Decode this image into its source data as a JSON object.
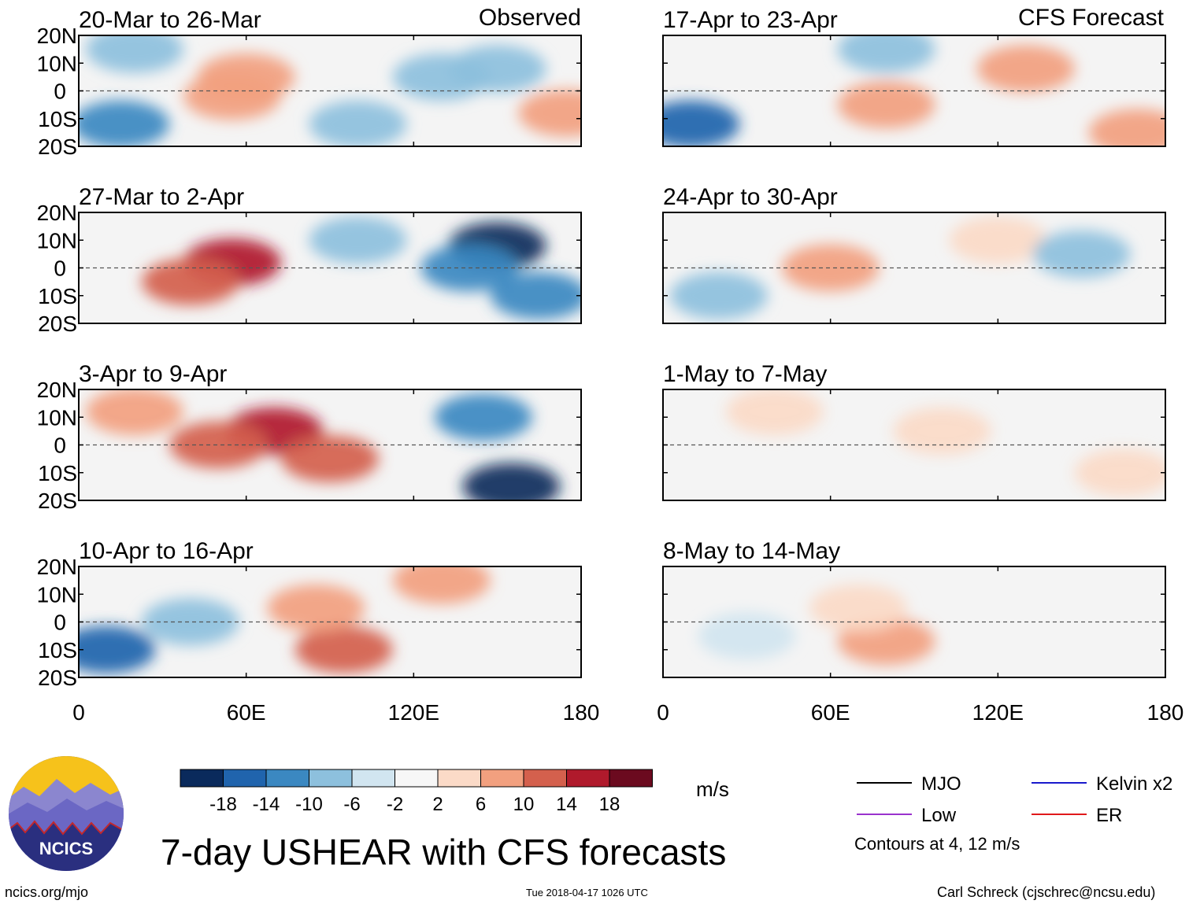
{
  "page": {
    "title": "7-day USHEAR with CFS forecasts",
    "left_footer": "ncics.org/mjo",
    "timestamp": "Tue 2018-04-17 1026 UTC",
    "author": "Carl Schreck (cjschrec@ncsu.edu)",
    "logo_text": "NCICS",
    "units": "m/s",
    "contours_note": "Contours at 4, 12 m/s"
  },
  "columns": {
    "left_label": "Observed",
    "right_label": "CFS Forecast"
  },
  "contour_legend": [
    {
      "name": "MJO",
      "color": "#000000"
    },
    {
      "name": "Kelvin x2",
      "color": "#1a1acc"
    },
    {
      "name": "Low",
      "color": "#9a32cd"
    },
    {
      "name": "ER",
      "color": "#e0191b"
    }
  ],
  "colorbar": {
    "colors": [
      "#0a2a5c",
      "#2064ad",
      "#3b88c1",
      "#8dc0dd",
      "#d1e5f0",
      "#f7f7f7",
      "#fbdac7",
      "#f2a07f",
      "#d4604d",
      "#b01a2c",
      "#6b0a1f"
    ],
    "ticks": [
      "-18",
      "-14",
      "-10",
      "-6",
      "-2",
      "2",
      "6",
      "10",
      "14",
      "18"
    ]
  },
  "chart_data": {
    "type": "heatmap",
    "variable": "USHEAR anomaly",
    "units": "m/s",
    "x_axis": {
      "range": [
        0,
        180
      ],
      "ticks": [
        "0",
        "60E",
        "120E",
        "180"
      ]
    },
    "y_axis": {
      "range": [
        -20,
        20
      ],
      "ticks": [
        "20N",
        "10N",
        "0",
        "10S",
        "20S"
      ]
    },
    "panels": [
      {
        "label": "20-Mar to 26-Mar",
        "kind": "Observed",
        "anomaly_cells": [
          {
            "lon": 60,
            "lat": 5,
            "value": 10
          },
          {
            "lon": 55,
            "lat": -2,
            "value": 8
          },
          {
            "lon": 20,
            "lat": 15,
            "value": -8
          },
          {
            "lon": 15,
            "lat": -12,
            "value": -10
          },
          {
            "lon": 130,
            "lat": 5,
            "value": -6
          },
          {
            "lon": 150,
            "lat": 8,
            "value": -8
          },
          {
            "lon": 175,
            "lat": -8,
            "value": 10
          },
          {
            "lon": 100,
            "lat": -12,
            "value": -6
          }
        ]
      },
      {
        "label": "27-Mar to 2-Apr",
        "kind": "Observed",
        "anomaly_cells": [
          {
            "lon": 55,
            "lat": 2,
            "value": 18
          },
          {
            "lon": 40,
            "lat": -5,
            "value": 14
          },
          {
            "lon": 150,
            "lat": 8,
            "value": -18
          },
          {
            "lon": 140,
            "lat": 0,
            "value": -12
          },
          {
            "lon": 165,
            "lat": -10,
            "value": -10
          },
          {
            "lon": 100,
            "lat": 10,
            "value": -6
          }
        ]
      },
      {
        "label": "3-Apr to 9-Apr",
        "kind": "Observed",
        "anomaly_cells": [
          {
            "lon": 70,
            "lat": 5,
            "value": 18
          },
          {
            "lon": 50,
            "lat": 0,
            "value": 14
          },
          {
            "lon": 90,
            "lat": -5,
            "value": 14
          },
          {
            "lon": 20,
            "lat": 12,
            "value": 8
          },
          {
            "lon": 155,
            "lat": -15,
            "value": -18
          },
          {
            "lon": 145,
            "lat": 10,
            "value": -10
          }
        ]
      },
      {
        "label": "10-Apr to 16-Apr",
        "kind": "Observed",
        "anomaly_cells": [
          {
            "lon": 95,
            "lat": -10,
            "value": 14
          },
          {
            "lon": 85,
            "lat": 5,
            "value": 10
          },
          {
            "lon": 130,
            "lat": 15,
            "value": 10
          },
          {
            "lon": 10,
            "lat": -10,
            "value": -14
          },
          {
            "lon": 40,
            "lat": 0,
            "value": -6
          }
        ]
      },
      {
        "label": "17-Apr to 23-Apr",
        "kind": "CFS Forecast",
        "anomaly_cells": [
          {
            "lon": 10,
            "lat": -12,
            "value": -14
          },
          {
            "lon": 80,
            "lat": -5,
            "value": 8
          },
          {
            "lon": 130,
            "lat": 8,
            "value": 8
          },
          {
            "lon": 80,
            "lat": 15,
            "value": -8
          },
          {
            "lon": 170,
            "lat": -15,
            "value": 8
          }
        ]
      },
      {
        "label": "24-Apr to 30-Apr",
        "kind": "CFS Forecast",
        "anomaly_cells": [
          {
            "lon": 60,
            "lat": 0,
            "value": 8
          },
          {
            "lon": 120,
            "lat": 10,
            "value": 6
          },
          {
            "lon": 20,
            "lat": -10,
            "value": -6
          },
          {
            "lon": 150,
            "lat": 5,
            "value": -6
          }
        ]
      },
      {
        "label": "1-May to 7-May",
        "kind": "CFS Forecast",
        "anomaly_cells": [
          {
            "lon": 40,
            "lat": 12,
            "value": 6
          },
          {
            "lon": 100,
            "lat": 5,
            "value": 4
          },
          {
            "lon": 165,
            "lat": -10,
            "value": 6
          }
        ]
      },
      {
        "label": "8-May to 14-May",
        "kind": "CFS Forecast",
        "anomaly_cells": [
          {
            "lon": 80,
            "lat": -7,
            "value": 8
          },
          {
            "lon": 70,
            "lat": 5,
            "value": 4
          },
          {
            "lon": 30,
            "lat": -5,
            "value": -4
          }
        ]
      }
    ]
  }
}
